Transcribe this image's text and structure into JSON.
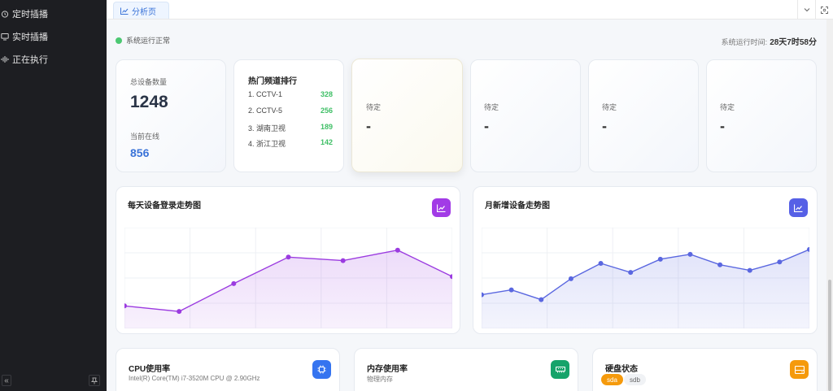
{
  "sidebar": {
    "items": [
      {
        "label": "定时插播",
        "icon": "alarm-clock-icon"
      },
      {
        "label": "实时插播",
        "icon": "monitor-icon"
      },
      {
        "label": "正在执行",
        "icon": "audio-wave-icon"
      }
    ],
    "collapse_icon": "double-chevron-left-icon",
    "pin_icon": "pin-icon"
  },
  "tabs": [
    {
      "label": "分析页",
      "icon": "chart-icon",
      "active": true
    }
  ],
  "tab_actions": [
    "chevron-down-icon",
    "fullscreen-icon"
  ],
  "status": {
    "text": "系统运行正常",
    "color": "#4cc872"
  },
  "uptime": {
    "label": "系统运行时间:",
    "value": "28天7时58分"
  },
  "device_card": {
    "total_label": "总设备数量",
    "total_value": "1248",
    "online_label": "当前在线",
    "online_value": "856"
  },
  "ranking": {
    "title": "热门频道排行",
    "items": [
      {
        "name": "1. CCTV-1",
        "value": "328"
      },
      {
        "name": "2. CCTV-5",
        "value": "256"
      },
      {
        "name": "3. 湖南卫视",
        "value": "189"
      },
      {
        "name": "4. 浙江卫视",
        "value": "142"
      }
    ]
  },
  "pending_cards": [
    {
      "label": "待定",
      "value": "-"
    },
    {
      "label": "待定",
      "value": "-"
    },
    {
      "label": "待定",
      "value": "-"
    },
    {
      "label": "待定",
      "value": "-"
    }
  ],
  "chart_data": [
    {
      "type": "area",
      "title": "每天设备登录走势图",
      "series": [
        {
          "values": [
            30,
            22,
            62,
            100,
            95,
            110,
            72
          ]
        }
      ],
      "ylim": [
        0,
        140
      ],
      "grid": true,
      "color": "#9b3be0",
      "badge_color": "#a23be6"
    },
    {
      "type": "area",
      "title": "月新增设备走势图",
      "series": [
        {
          "values": [
            46,
            53,
            39,
            69,
            91,
            78,
            97,
            104,
            89,
            81,
            93,
            111
          ]
        }
      ],
      "ylim": [
        0,
        140
      ],
      "grid": true,
      "color": "#5a67e0",
      "badge_color": "#5660e6"
    }
  ],
  "resources": {
    "cpu": {
      "title": "CPU使用率",
      "sub": "Intel(R) Core(TM) i7-3520M CPU @ 2.90GHz",
      "badge_color": "#3574f0",
      "icon": "cpu-icon"
    },
    "memory": {
      "title": "内存使用率",
      "sub": "物理内存",
      "badge_color": "#16a36a",
      "icon": "memory-icon"
    },
    "disk": {
      "title": "硬盘状态",
      "tags": [
        "sda",
        "sdb"
      ],
      "badge_color": "#f59a0c",
      "icon": "hard-disk-icon"
    }
  }
}
